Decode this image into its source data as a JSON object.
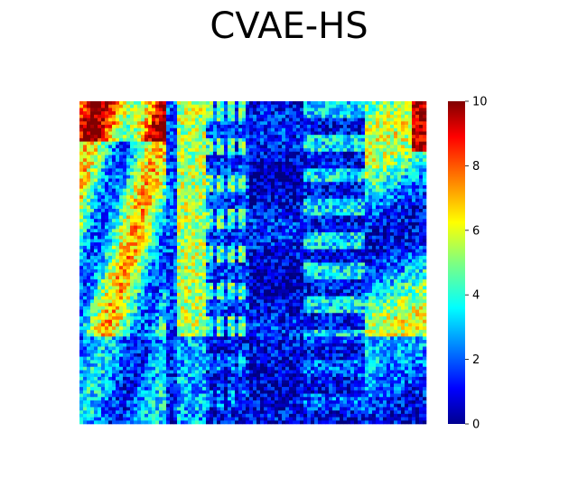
{
  "chart_data": {
    "type": "heatmap",
    "title": "CVAE-HS",
    "colormap": "jet",
    "colorbar": {
      "min": 0,
      "max": 10,
      "ticks": [
        0,
        2,
        4,
        6,
        8,
        10
      ]
    }
  }
}
